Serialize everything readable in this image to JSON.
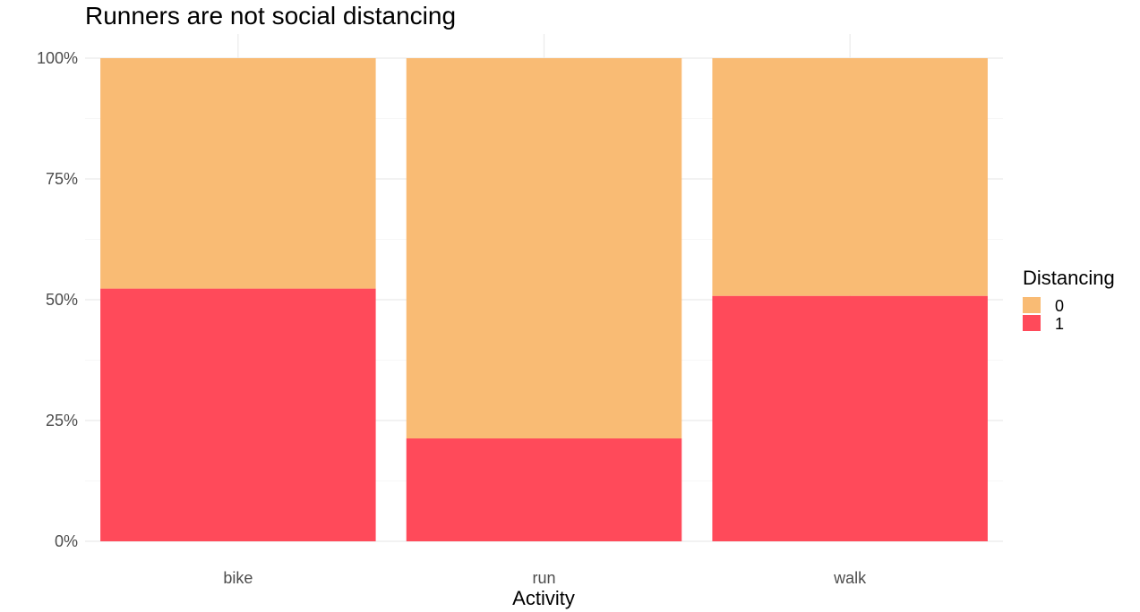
{
  "chart_data": {
    "type": "bar",
    "stacked": true,
    "position": "fill",
    "title": "Runners are not social distancing",
    "xlabel": "Activity",
    "ylabel": "",
    "categories": [
      "bike",
      "run",
      "walk"
    ],
    "series": [
      {
        "name": "1",
        "color": "#ff4a5a",
        "values": [
          0.523,
          0.213,
          0.508
        ]
      },
      {
        "name": "0",
        "color": "#f9bb74",
        "values": [
          0.477,
          0.787,
          0.492
        ]
      }
    ],
    "ylim": [
      0,
      1
    ],
    "yticks": [
      0,
      0.25,
      0.5,
      0.75,
      1
    ],
    "ytick_labels": [
      "0%",
      "25%",
      "50%",
      "75%",
      "100%"
    ],
    "grid": true,
    "legend": {
      "title": "Distancing",
      "placement": "right",
      "entries": [
        {
          "label": "0",
          "color": "#f9bb74"
        },
        {
          "label": "1",
          "color": "#ff4a5a"
        }
      ]
    }
  }
}
